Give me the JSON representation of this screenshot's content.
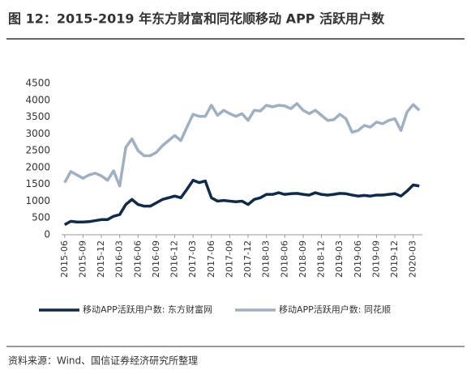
{
  "chart_data": {
    "type": "line",
    "title": "图 12：2015-2019 年东方财富和同花顺移动 APP 活跃用户数",
    "source": "资料来源：Wind、国信证券经济研究所整理",
    "categories": [
      "2015-06",
      null,
      null,
      "2015-09",
      null,
      null,
      "2015-12",
      null,
      null,
      "2016-03",
      null,
      null,
      "2016-06",
      null,
      null,
      "2016-09",
      null,
      null,
      "2016-12",
      null,
      null,
      "2017-03",
      null,
      null,
      "2017-06",
      null,
      null,
      "2017-09",
      null,
      null,
      "2017-12",
      null,
      null,
      "2018-03",
      null,
      null,
      "2018-06",
      null,
      null,
      "2018-09",
      null,
      null,
      "2018-12",
      null,
      null,
      "2019-03",
      null,
      null,
      "2019-06",
      null,
      null,
      "2019-09",
      null,
      null,
      "2019-12",
      null,
      null,
      "2020-03",
      null
    ],
    "series": [
      {
        "name": "移动APP活跃用户数: 东方财富网",
        "color": "#0f2a4a",
        "values": [
          300,
          400,
          380,
          380,
          390,
          420,
          450,
          450,
          550,
          600,
          900,
          1050,
          900,
          850,
          850,
          950,
          1050,
          1100,
          1150,
          1100,
          1350,
          1620,
          1550,
          1600,
          1100,
          1000,
          1020,
          1000,
          980,
          1000,
          900,
          1050,
          1100,
          1200,
          1200,
          1250,
          1200,
          1220,
          1230,
          1200,
          1180,
          1250,
          1200,
          1180,
          1200,
          1230,
          1220,
          1180,
          1150,
          1170,
          1150,
          1180,
          1180,
          1200,
          1220,
          1150,
          1300,
          1480,
          1450
        ]
      },
      {
        "name": "移动APP活跃用户数: 同花顺",
        "color": "#9fb0c4",
        "values": [
          1550,
          1880,
          1780,
          1680,
          1780,
          1830,
          1750,
          1620,
          1900,
          1450,
          2600,
          2850,
          2500,
          2350,
          2350,
          2450,
          2650,
          2800,
          2950,
          2800,
          3200,
          3580,
          3520,
          3520,
          3850,
          3550,
          3700,
          3600,
          3520,
          3600,
          3400,
          3700,
          3680,
          3850,
          3800,
          3850,
          3830,
          3750,
          3900,
          3700,
          3600,
          3700,
          3550,
          3400,
          3420,
          3580,
          3450,
          3050,
          3100,
          3250,
          3200,
          3350,
          3300,
          3400,
          3450,
          3100,
          3650,
          3870,
          3700
        ]
      }
    ],
    "ylim": [
      0,
      4500
    ],
    "yticks": [
      0,
      500,
      1000,
      1500,
      2000,
      2500,
      3000,
      3500,
      4000,
      4500
    ]
  }
}
